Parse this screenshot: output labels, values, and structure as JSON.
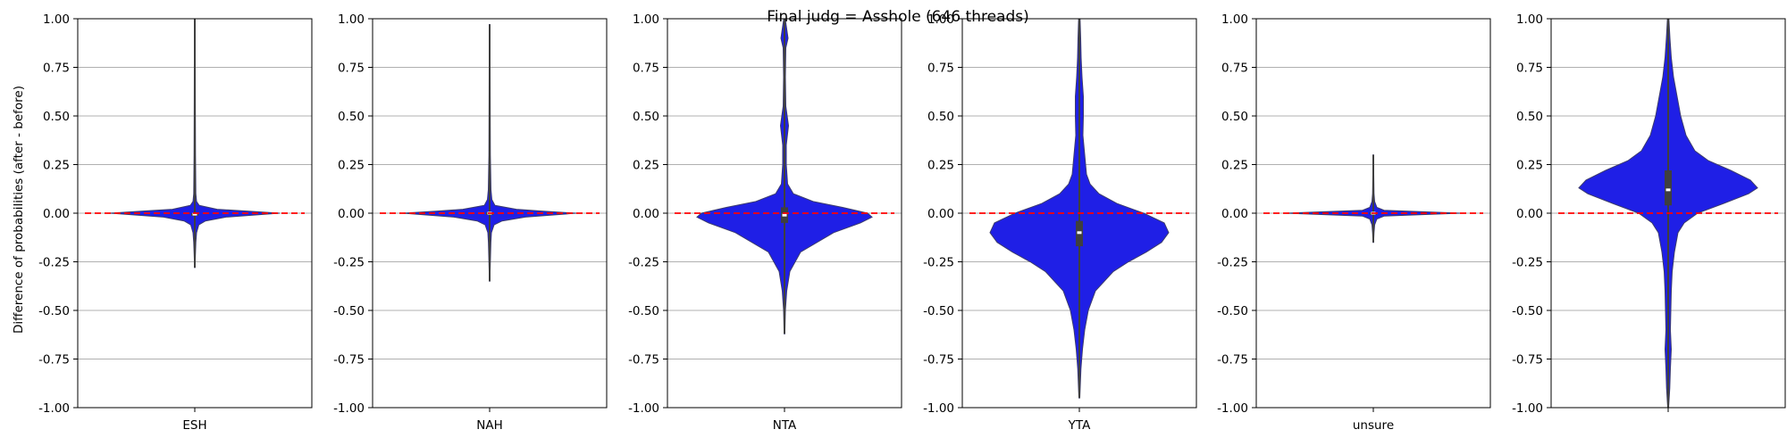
{
  "chart_data": {
    "type": "violin",
    "title": "Final judg = Asshole (646 threads)",
    "ylabel": "Difference of probabilities (after - before)",
    "ylim": [
      -1.0,
      1.0
    ],
    "yticks": [
      "1.00",
      "0.75",
      "0.50",
      "0.25",
      "0.00",
      "-0.25",
      "-0.50",
      "-0.75",
      "-1.00"
    ],
    "ytick_values": [
      1.0,
      0.75,
      0.5,
      0.25,
      0.0,
      -0.25,
      -0.5,
      -0.75,
      -1.0
    ],
    "grid": "horizontal",
    "reference_line": {
      "y": 0.0,
      "color": "#ff0000",
      "style": "dashed"
    },
    "violin_color": "#1f1fe6",
    "panels": [
      {
        "category": "ESH",
        "median": -0.005,
        "q1": -0.01,
        "q3": 0.0,
        "whisker_low": -0.28,
        "whisker_high": 1.0,
        "profile": [
          [
            -0.28,
            0.002
          ],
          [
            -0.2,
            0.008
          ],
          [
            -0.15,
            0.012
          ],
          [
            -0.1,
            0.02
          ],
          [
            -0.06,
            0.045
          ],
          [
            -0.04,
            0.12
          ],
          [
            -0.02,
            0.35
          ],
          [
            0.0,
            0.95
          ],
          [
            0.01,
            0.6
          ],
          [
            0.02,
            0.25
          ],
          [
            0.04,
            0.05
          ],
          [
            0.06,
            0.02
          ],
          [
            0.1,
            0.012
          ],
          [
            0.3,
            0.008
          ],
          [
            0.6,
            0.006
          ],
          [
            1.0,
            0.004
          ]
        ]
      },
      {
        "category": "NAH",
        "median": 0.0,
        "q1": -0.005,
        "q3": 0.005,
        "whisker_low": -0.35,
        "whisker_high": 0.97,
        "profile": [
          [
            -0.35,
            0.002
          ],
          [
            -0.25,
            0.008
          ],
          [
            -0.15,
            0.014
          ],
          [
            -0.1,
            0.02
          ],
          [
            -0.06,
            0.05
          ],
          [
            -0.04,
            0.14
          ],
          [
            -0.02,
            0.4
          ],
          [
            0.0,
            0.97
          ],
          [
            0.01,
            0.6
          ],
          [
            0.02,
            0.3
          ],
          [
            0.04,
            0.06
          ],
          [
            0.07,
            0.025
          ],
          [
            0.12,
            0.015
          ],
          [
            0.3,
            0.008
          ],
          [
            0.6,
            0.006
          ],
          [
            0.97,
            0.004
          ]
        ]
      },
      {
        "category": "NTA",
        "median": -0.01,
        "q1": -0.05,
        "q3": 0.03,
        "whisker_low": -0.62,
        "whisker_high": 1.0,
        "profile": [
          [
            -0.62,
            0.004
          ],
          [
            -0.5,
            0.01
          ],
          [
            -0.4,
            0.025
          ],
          [
            -0.3,
            0.06
          ],
          [
            -0.2,
            0.18
          ],
          [
            -0.1,
            0.55
          ],
          [
            -0.05,
            0.85
          ],
          [
            -0.02,
            0.98
          ],
          [
            0.0,
            0.93
          ],
          [
            0.03,
            0.65
          ],
          [
            0.06,
            0.32
          ],
          [
            0.1,
            0.1
          ],
          [
            0.15,
            0.035
          ],
          [
            0.25,
            0.02
          ],
          [
            0.35,
            0.02
          ],
          [
            0.45,
            0.045
          ],
          [
            0.55,
            0.015
          ],
          [
            0.7,
            0.01
          ],
          [
            0.85,
            0.015
          ],
          [
            0.9,
            0.04
          ],
          [
            1.0,
            0.008
          ]
        ]
      },
      {
        "category": "YTA",
        "median": -0.1,
        "q1": -0.17,
        "q3": -0.04,
        "whisker_low": -0.95,
        "whisker_high": 1.0,
        "profile": [
          [
            -0.95,
            0.005
          ],
          [
            -0.8,
            0.018
          ],
          [
            -0.7,
            0.035
          ],
          [
            -0.6,
            0.06
          ],
          [
            -0.5,
            0.1
          ],
          [
            -0.4,
            0.18
          ],
          [
            -0.3,
            0.38
          ],
          [
            -0.25,
            0.55
          ],
          [
            -0.2,
            0.75
          ],
          [
            -0.15,
            0.92
          ],
          [
            -0.1,
            1.0
          ],
          [
            -0.05,
            0.95
          ],
          [
            0.0,
            0.72
          ],
          [
            0.05,
            0.42
          ],
          [
            0.1,
            0.22
          ],
          [
            0.15,
            0.12
          ],
          [
            0.2,
            0.08
          ],
          [
            0.25,
            0.07
          ],
          [
            0.3,
            0.06
          ],
          [
            0.4,
            0.04
          ],
          [
            0.5,
            0.045
          ],
          [
            0.6,
            0.045
          ],
          [
            0.7,
            0.03
          ],
          [
            0.8,
            0.02
          ],
          [
            0.9,
            0.015
          ],
          [
            1.0,
            0.008
          ]
        ]
      },
      {
        "category": "unsure",
        "median": 0.0,
        "q1": -0.005,
        "q3": 0.005,
        "whisker_low": -0.15,
        "whisker_high": 0.3,
        "profile": [
          [
            -0.15,
            0.003
          ],
          [
            -0.1,
            0.008
          ],
          [
            -0.06,
            0.015
          ],
          [
            -0.03,
            0.04
          ],
          [
            -0.015,
            0.12
          ],
          [
            0.0,
            0.98
          ],
          [
            0.015,
            0.12
          ],
          [
            0.03,
            0.04
          ],
          [
            0.06,
            0.015
          ],
          [
            0.1,
            0.008
          ],
          [
            0.2,
            0.005
          ],
          [
            0.3,
            0.003
          ]
        ]
      },
      {
        "category": "",
        "median": 0.12,
        "q1": 0.04,
        "q3": 0.22,
        "whisker_low": -1.0,
        "whisker_high": 1.0,
        "profile": [
          [
            -1.0,
            0.005
          ],
          [
            -0.9,
            0.018
          ],
          [
            -0.8,
            0.025
          ],
          [
            -0.7,
            0.035
          ],
          [
            -0.6,
            0.025
          ],
          [
            -0.5,
            0.03
          ],
          [
            -0.4,
            0.035
          ],
          [
            -0.3,
            0.045
          ],
          [
            -0.2,
            0.07
          ],
          [
            -0.1,
            0.11
          ],
          [
            -0.05,
            0.18
          ],
          [
            0.0,
            0.33
          ],
          [
            0.05,
            0.62
          ],
          [
            0.1,
            0.9
          ],
          [
            0.13,
            1.0
          ],
          [
            0.17,
            0.92
          ],
          [
            0.22,
            0.7
          ],
          [
            0.27,
            0.45
          ],
          [
            0.32,
            0.3
          ],
          [
            0.4,
            0.2
          ],
          [
            0.5,
            0.14
          ],
          [
            0.6,
            0.1
          ],
          [
            0.7,
            0.06
          ],
          [
            0.8,
            0.035
          ],
          [
            0.9,
            0.02
          ],
          [
            1.0,
            0.008
          ]
        ]
      }
    ]
  }
}
